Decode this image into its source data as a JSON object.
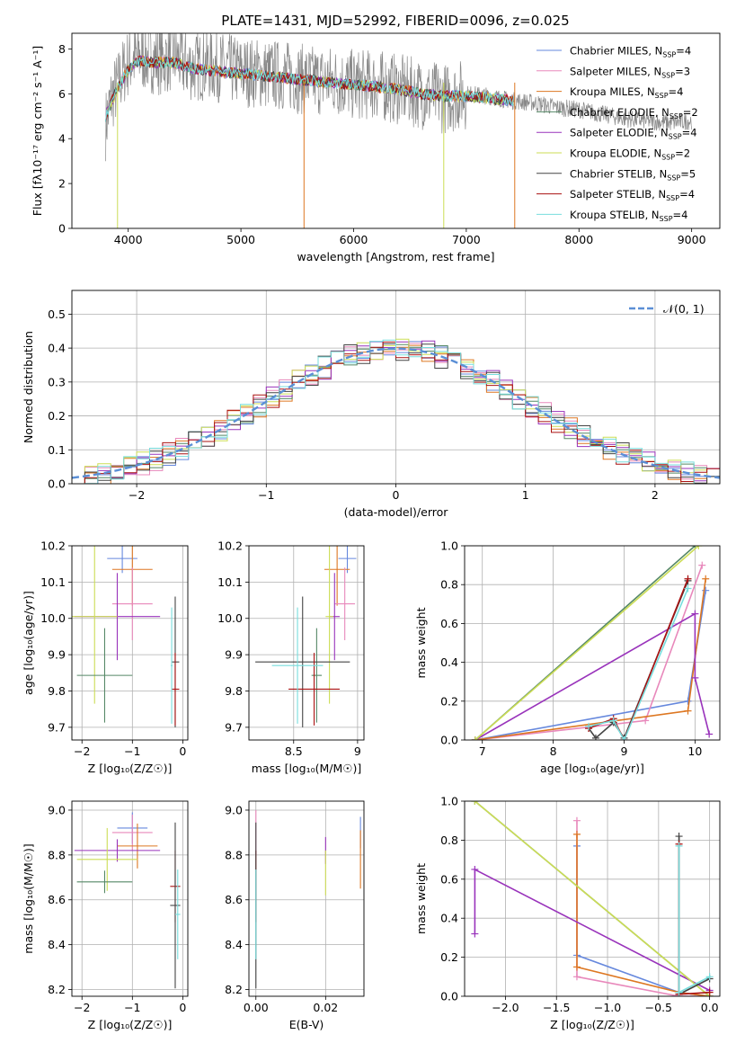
{
  "colors": {
    "Chabrier MILES": "#6688dd",
    "Salpeter MILES": "#e888bb",
    "Kroupa MILES": "#dd7722",
    "Chabrier ELODIE": "#558866",
    "Salpeter ELODIE": "#9933bb",
    "Kroupa ELODIE": "#ccdd55",
    "Chabrier STELIB": "#444444",
    "Salpeter STELIB": "#aa1111",
    "Kroupa STELIB": "#77dddd",
    "fit": "#777777",
    "normal": "#5b8fd6"
  },
  "chart_data": [
    {
      "id": "spectrum",
      "type": "line",
      "title": "PLATE=1431, MJD=52992, FIBERID=0096, z=0.025",
      "xlabel": "wavelength [Angstrom, rest frame]",
      "ylabel": "Flux [fλ10⁻¹⁷ erg cm⁻² s⁻¹ A⁻¹]",
      "xlim": [
        3500,
        9250
      ],
      "ylim": [
        0,
        8.7
      ],
      "xticks": [
        4000,
        5000,
        6000,
        7000,
        8000,
        9000
      ],
      "yticks": [
        0,
        2,
        4,
        6,
        8
      ],
      "grid": false,
      "legend_position": "top-right",
      "legend": [
        {
          "model": "Chabrier MILES",
          "label": "Chabrier MILES, N",
          "n": "=4"
        },
        {
          "model": "Salpeter MILES",
          "label": "Salpeter MILES, N",
          "n": "=3"
        },
        {
          "model": "Kroupa MILES",
          "label": "Kroupa MILES, N",
          "n": "=4"
        },
        {
          "model": "Chabrier ELODIE",
          "label": "Chabrier ELODIE, N",
          "n": "=2"
        },
        {
          "model": "Salpeter ELODIE",
          "label": "Salpeter ELODIE, N",
          "n": "=4"
        },
        {
          "model": "Kroupa ELODIE",
          "label": "Kroupa ELODIE, N",
          "n": "=2"
        },
        {
          "model": "Chabrier STELIB",
          "label": "Chabrier STELIB, N",
          "n": "=5"
        },
        {
          "model": "Salpeter STELIB",
          "label": "Salpeter STELIB, N",
          "n": "=4"
        },
        {
          "model": "Kroupa STELIB",
          "label": "Kroupa STELIB, N",
          "n": "=4"
        }
      ],
      "data_wavelength": [
        3800,
        3850,
        3900,
        3950,
        4000,
        4100,
        4200,
        4300,
        4400,
        4500,
        4600,
        4700,
        4800,
        4900,
        5000,
        5200,
        5400,
        5600,
        5800,
        6000,
        6200,
        6400,
        6600,
        6800,
        7000,
        7200,
        7400,
        7600,
        7800,
        8000,
        8200,
        8400,
        8600,
        8800,
        9000
      ],
      "data_flux": [
        4.6,
        5.8,
        6.3,
        6.9,
        7.4,
        7.7,
        7.6,
        7.5,
        7.7,
        7.3,
        7.2,
        7.3,
        7.2,
        7.1,
        7.0,
        6.9,
        6.8,
        6.6,
        6.6,
        6.4,
        6.4,
        6.2,
        6.0,
        5.8,
        6.0,
        5.9,
        5.7,
        5.6,
        5.4,
        5.3,
        5.1,
        4.9,
        4.8,
        4.7,
        4.8
      ],
      "model_wavelength": [
        3800,
        3900,
        4000,
        4100,
        4200,
        4400,
        4600,
        4800,
        5000,
        5200,
        5400,
        5600,
        5800,
        6000,
        6200,
        6400,
        6600,
        6800,
        7000,
        7200,
        7400
      ],
      "model_flux": [
        5.0,
        6.2,
        7.1,
        7.5,
        7.4,
        7.4,
        7.1,
        7.0,
        6.9,
        6.8,
        6.7,
        6.6,
        6.5,
        6.4,
        6.3,
        6.2,
        6.0,
        5.9,
        5.9,
        5.8,
        5.7
      ]
    },
    {
      "id": "residuals",
      "type": "histogram",
      "xlabel": "(data-model)/error",
      "ylabel": "Normed distribution",
      "xlim": [
        -2.5,
        2.5
      ],
      "ylim": [
        0,
        0.57
      ],
      "xticks": [
        -2,
        -1,
        0,
        1,
        2
      ],
      "xtick_labels": [
        "−2",
        "−1",
        "0",
        "1",
        "2"
      ],
      "yticks": [
        0.0,
        0.1,
        0.2,
        0.3,
        0.4,
        0.5
      ],
      "grid": true,
      "legend_position": "top-right",
      "normal_label": "𝒩(0, 1)",
      "bin_width": 0.1
    },
    {
      "id": "age-vs-Z",
      "type": "errorbar",
      "xlabel": "Z [log₁₀(Z/Z☉)]",
      "ylabel": "age  [log₁₀(age/yr)]",
      "xlim": [
        -2.2,
        0.1
      ],
      "ylim": [
        9.665,
        10.2
      ],
      "xticks": [
        -2,
        -1,
        0
      ],
      "xtick_labels": [
        "−2",
        "−1",
        "0"
      ],
      "yticks": [
        9.7,
        9.8,
        9.9,
        10.0,
        10.1,
        10.2
      ],
      "grid": true,
      "points": [
        {
          "model": "Chabrier MILES",
          "x": -1.2,
          "x_err": 0.3,
          "y": 10.165,
          "y_err": 0.04
        },
        {
          "model": "Kroupa MILES",
          "x": -1.0,
          "x_err": 0.4,
          "y": 10.135,
          "y_err": 0.1
        },
        {
          "model": "Salpeter MILES",
          "x": -1.0,
          "x_err": 0.4,
          "y": 10.04,
          "y_err": 0.1
        },
        {
          "model": "Salpeter ELODIE",
          "x": -1.3,
          "x_err": 0.85,
          "y": 10.005,
          "y_err": 0.12
        },
        {
          "model": "Kroupa ELODIE",
          "x": -1.75,
          "x_err": 0.45,
          "y": 10.005,
          "y_err": 0.24
        },
        {
          "model": "Chabrier ELODIE",
          "x": -1.55,
          "x_err": 0.55,
          "y": 9.843,
          "y_err": 0.13
        },
        {
          "model": "Chabrier STELIB",
          "x": -0.15,
          "x_err": 0.08,
          "y": 9.88,
          "y_err": 0.18
        },
        {
          "model": "Salpeter STELIB",
          "x": -0.15,
          "x_err": 0.08,
          "y": 9.805,
          "y_err": 0.1
        },
        {
          "model": "Kroupa STELIB",
          "x": -0.22,
          "x_err": 0.02,
          "y": 9.87,
          "y_err": 0.16
        }
      ]
    },
    {
      "id": "age-vs-mass",
      "type": "errorbar",
      "xlabel": "mass [log₁₀(M/M☉)]",
      "ylabel": "",
      "xlim": [
        8.15,
        9.05
      ],
      "ylim": [
        9.665,
        10.2
      ],
      "xticks": [
        8.5,
        9.0
      ],
      "yticks": [
        9.7,
        9.8,
        9.9,
        10.0,
        10.1,
        10.2
      ],
      "grid": true,
      "points": [
        {
          "model": "Chabrier MILES",
          "x": 8.92,
          "x_err": 0.07,
          "y": 10.165,
          "y_err": 0.04
        },
        {
          "model": "Kroupa MILES",
          "x": 8.84,
          "x_err": 0.1,
          "y": 10.135,
          "y_err": 0.1
        },
        {
          "model": "Salpeter MILES",
          "x": 8.9,
          "x_err": 0.08,
          "y": 10.04,
          "y_err": 0.1
        },
        {
          "model": "Salpeter ELODIE",
          "x": 8.82,
          "x_err": 0.04,
          "y": 10.005,
          "y_err": 0.12
        },
        {
          "model": "Kroupa ELODIE",
          "x": 8.78,
          "x_err": 0.03,
          "y": 10.005,
          "y_err": 0.24
        },
        {
          "model": "Chabrier ELODIE",
          "x": 8.68,
          "x_err": 0.04,
          "y": 9.843,
          "y_err": 0.13
        },
        {
          "model": "Chabrier STELIB",
          "x": 8.57,
          "x_err": 0.37,
          "y": 9.88,
          "y_err": 0.18
        },
        {
          "model": "Salpeter STELIB",
          "x": 8.66,
          "x_err": 0.2,
          "y": 9.805,
          "y_err": 0.1
        },
        {
          "model": "Kroupa STELIB",
          "x": 8.53,
          "x_err": 0.2,
          "y": 9.87,
          "y_err": 0.16
        }
      ]
    },
    {
      "id": "weight-vs-age",
      "type": "line",
      "xlabel": "age  [log₁₀(age/yr)]",
      "ylabel": "mass weight",
      "xlim": [
        6.75,
        10.35
      ],
      "ylim": [
        0,
        1.0
      ],
      "xticks": [
        7,
        8,
        9,
        10
      ],
      "yticks": [
        0.0,
        0.2,
        0.4,
        0.6,
        0.8,
        1.0
      ],
      "grid": true,
      "series": [
        {
          "model": "Chabrier MILES",
          "points": [
            [
              6.9,
              0.0
            ],
            [
              9.9,
              0.2
            ],
            [
              10.15,
              0.77
            ]
          ]
        },
        {
          "model": "Salpeter MILES",
          "points": [
            [
              6.9,
              0.0
            ],
            [
              9.3,
              0.1
            ],
            [
              10.1,
              0.9
            ]
          ]
        },
        {
          "model": "Kroupa MILES",
          "points": [
            [
              6.9,
              0.0
            ],
            [
              9.9,
              0.15
            ],
            [
              10.15,
              0.83
            ]
          ]
        },
        {
          "model": "Chabrier ELODIE",
          "points": [
            [
              6.9,
              0.0
            ],
            [
              10.0,
              1.0
            ]
          ]
        },
        {
          "model": "Salpeter ELODIE",
          "points": [
            [
              6.9,
              0.0
            ],
            [
              10.0,
              0.65
            ],
            [
              10.0,
              0.32
            ],
            [
              10.2,
              0.03
            ]
          ]
        },
        {
          "model": "Kroupa ELODIE",
          "points": [
            [
              6.9,
              0.0
            ],
            [
              10.05,
              1.0
            ]
          ]
        },
        {
          "model": "Chabrier STELIB",
          "points": [
            [
              8.5,
              0.06
            ],
            [
              8.6,
              0.01
            ],
            [
              8.85,
              0.09
            ],
            [
              9.0,
              0.01
            ],
            [
              9.9,
              0.82
            ]
          ]
        },
        {
          "model": "Salpeter STELIB",
          "points": [
            [
              8.5,
              0.06
            ],
            [
              8.85,
              0.11
            ],
            [
              9.0,
              0.0
            ],
            [
              9.9,
              0.83
            ]
          ]
        },
        {
          "model": "Kroupa STELIB",
          "points": [
            [
              8.5,
              0.07
            ],
            [
              8.85,
              0.1
            ],
            [
              9.0,
              0.0
            ],
            [
              9.9,
              0.78
            ]
          ]
        }
      ]
    },
    {
      "id": "mass-vs-Z",
      "type": "errorbar",
      "xlabel": "Z [log₁₀(Z/Z☉)]",
      "ylabel": "mass [log₁₀(M/M☉)]",
      "xlim": [
        -2.2,
        0.1
      ],
      "ylim": [
        8.17,
        9.04
      ],
      "xticks": [
        -2,
        -1,
        0
      ],
      "xtick_labels": [
        "−2",
        "−1",
        "0"
      ],
      "yticks": [
        8.2,
        8.4,
        8.6,
        8.8,
        9.0
      ],
      "grid": true,
      "points": [
        {
          "model": "Chabrier MILES",
          "x": -1.0,
          "x_err": 0.3,
          "y": 8.92,
          "y_err": 0.07
        },
        {
          "model": "Salpeter MILES",
          "x": -1.0,
          "x_err": 0.4,
          "y": 8.9,
          "y_err": 0.08
        },
        {
          "model": "Kroupa MILES",
          "x": -0.9,
          "x_err": 0.4,
          "y": 8.84,
          "y_err": 0.1
        },
        {
          "model": "Salpeter ELODIE",
          "x": -1.3,
          "x_err": 0.85,
          "y": 8.82,
          "y_err": 0.05
        },
        {
          "model": "Kroupa ELODIE",
          "x": -1.5,
          "x_err": 0.6,
          "y": 8.78,
          "y_err": 0.14
        },
        {
          "model": "Chabrier ELODIE",
          "x": -1.55,
          "x_err": 0.55,
          "y": 8.68,
          "y_err": 0.05
        },
        {
          "model": "Salpeter STELIB",
          "x": -0.15,
          "x_err": 0.1,
          "y": 8.66,
          "y_err": 0.16
        },
        {
          "model": "Chabrier STELIB",
          "x": -0.15,
          "x_err": 0.1,
          "y": 8.575,
          "y_err": 0.37
        },
        {
          "model": "Kroupa STELIB",
          "x": -0.1,
          "x_err": 0.05,
          "y": 8.535,
          "y_err": 0.2
        }
      ]
    },
    {
      "id": "mass-vs-ebv",
      "type": "errorbar",
      "xlabel": "E(B-V)",
      "ylabel": "",
      "xlim": [
        -0.002,
        0.031
      ],
      "ylim": [
        8.17,
        9.04
      ],
      "xticks": [
        0.0,
        0.02
      ],
      "xtick_labels": [
        "0.00",
        "0.02"
      ],
      "yticks": [
        8.2,
        8.4,
        8.6,
        8.8,
        9.0
      ],
      "grid": true,
      "points": [
        {
          "model": "Salpeter MILES",
          "x": 0.0,
          "x_err": 0.0,
          "y": 8.9,
          "y_err": 0.1
        },
        {
          "model": "Salpeter STELIB",
          "x": 0.0,
          "x_err": 0.0,
          "y": 8.66,
          "y_err": 0.16
        },
        {
          "model": "Chabrier STELIB",
          "x": 0.0,
          "x_err": 0.0,
          "y": 8.575,
          "y_err": 0.37
        },
        {
          "model": "Kroupa STELIB",
          "x": 0.0,
          "x_err": 0.0,
          "y": 8.535,
          "y_err": 0.2
        },
        {
          "model": "Salpeter ELODIE",
          "x": 0.02,
          "x_err": 0.0,
          "y": 8.82,
          "y_err": 0.06
        },
        {
          "model": "Kroupa ELODIE",
          "x": 0.02,
          "x_err": 0.0,
          "y": 8.72,
          "y_err": 0.1
        },
        {
          "model": "Chabrier MILES",
          "x": 0.03,
          "x_err": 0.0,
          "y": 8.9,
          "y_err": 0.07
        },
        {
          "model": "Kroupa MILES",
          "x": 0.03,
          "x_err": 0.0,
          "y": 8.78,
          "y_err": 0.13
        }
      ]
    },
    {
      "id": "weight-vs-Z",
      "type": "line",
      "xlabel": "Z [log₁₀(Z/Z☉)]",
      "ylabel": "mass weight",
      "xlim": [
        -2.4,
        0.1
      ],
      "ylim": [
        0,
        1.0
      ],
      "xticks": [
        -2.0,
        -1.5,
        -1.0,
        -0.5,
        0.0
      ],
      "xtick_labels": [
        "−2.0",
        "−1.5",
        "−1.0",
        "−0.5",
        "0.0"
      ],
      "yticks": [
        0.0,
        0.2,
        0.4,
        0.6,
        0.8,
        1.0
      ],
      "grid": true,
      "series": [
        {
          "model": "Chabrier MILES",
          "points": [
            [
              -1.3,
              0.77
            ],
            [
              -1.3,
              0.21
            ],
            [
              -0.3,
              0.02
            ],
            [
              0.0,
              0.0
            ]
          ]
        },
        {
          "model": "Salpeter MILES",
          "points": [
            [
              -1.3,
              0.9
            ],
            [
              -1.3,
              0.1
            ],
            [
              -0.3,
              0.0
            ],
            [
              0.0,
              0.0
            ]
          ]
        },
        {
          "model": "Kroupa MILES",
          "points": [
            [
              -1.3,
              0.83
            ],
            [
              -1.3,
              0.15
            ],
            [
              -0.3,
              0.02
            ],
            [
              0.0,
              0.0
            ]
          ]
        },
        {
          "model": "Chabrier ELODIE",
          "points": [
            [
              -2.3,
              1.0
            ],
            [
              0.0,
              0.0
            ]
          ]
        },
        {
          "model": "Salpeter ELODIE",
          "points": [
            [
              -2.3,
              0.32
            ],
            [
              -2.3,
              0.65
            ],
            [
              0.0,
              0.03
            ]
          ]
        },
        {
          "model": "Kroupa ELODIE",
          "points": [
            [
              -2.3,
              1.0
            ],
            [
              0.0,
              0.0
            ]
          ]
        },
        {
          "model": "Chabrier STELIB",
          "points": [
            [
              -0.3,
              0.82
            ],
            [
              -0.3,
              0.01
            ],
            [
              0.0,
              0.09
            ]
          ]
        },
        {
          "model": "Salpeter STELIB",
          "points": [
            [
              -0.3,
              0.78
            ],
            [
              -0.3,
              0.01
            ],
            [
              0.0,
              0.02
            ]
          ]
        },
        {
          "model": "Kroupa STELIB",
          "points": [
            [
              -0.3,
              0.77
            ],
            [
              -0.3,
              0.02
            ],
            [
              0.0,
              0.1
            ]
          ]
        }
      ]
    }
  ]
}
